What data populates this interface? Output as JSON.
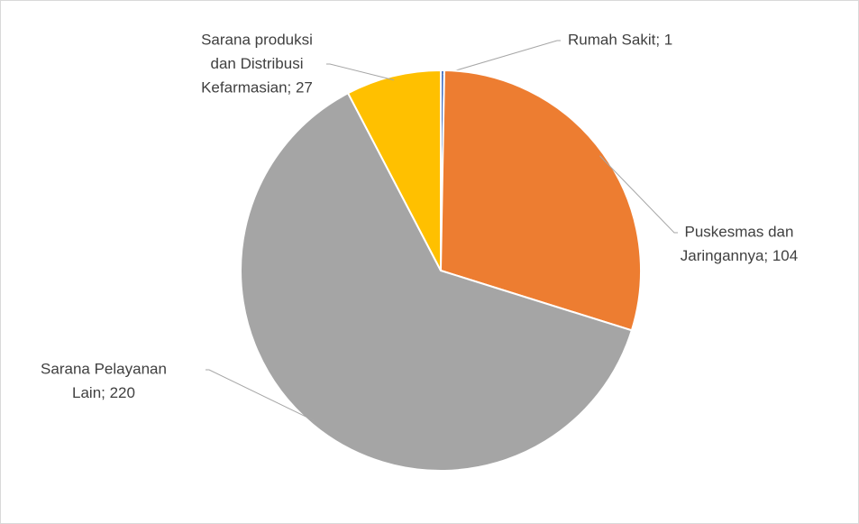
{
  "chart_data": {
    "type": "pie",
    "labels": [
      [
        "Rumah Sakit; 1"
      ],
      [
        "Puskesmas dan",
        "Jaringannya; 104"
      ],
      [
        "Sarana Pelayanan",
        "Lain; 220"
      ],
      [
        "Sarana produksi",
        "dan Distribusi",
        "Kefarmasian; 27"
      ]
    ],
    "values": [
      1,
      104,
      220,
      27
    ],
    "colors": [
      "#4472c4",
      "#ed7d31",
      "#a5a5a5",
      "#ffc000"
    ]
  }
}
